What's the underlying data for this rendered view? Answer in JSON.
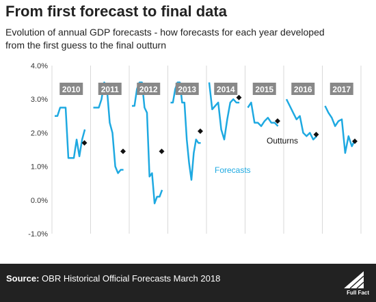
{
  "title": "From first forecast to final data",
  "subtitle": "Evolution of annual GDP forecasts - how forecasts for each year developed from the first guess to the final outturn",
  "footer": {
    "source_label": "Source:",
    "source_text": "OBR Historical Official Forecasts March 2018",
    "logo_text": "Full Fact"
  },
  "colors": {
    "forecast": "#1ea9e1",
    "outturn": "#111111",
    "label_box": "#888888",
    "gridline": "#d8d8d8"
  },
  "chart_data": {
    "type": "line",
    "y_ticks": [
      "4.0%",
      "3.0%",
      "2.0%",
      "1.0%",
      "0.0%",
      "-1.0%"
    ],
    "ylim": [
      -1.0,
      4.0
    ],
    "grid": "vertical-only",
    "annotations": {
      "forecasts": "Forecasts",
      "outturns": "Outturns"
    },
    "series": [
      {
        "year": "2010",
        "outturn": 1.7,
        "forecast": [
          2.5,
          2.5,
          2.75,
          2.75,
          2.75,
          1.25,
          1.25,
          1.25,
          1.8,
          1.3,
          1.8,
          2.1
        ]
      },
      {
        "year": "2011",
        "outturn": 1.45,
        "forecast": [
          2.75,
          2.75,
          2.75,
          3.0,
          3.5,
          3.3,
          2.3,
          2.0,
          1.0,
          0.8,
          0.9,
          0.9
        ]
      },
      {
        "year": "2012",
        "outturn": 1.45,
        "forecast": [
          2.8,
          2.8,
          3.3,
          3.5,
          3.5,
          2.75,
          2.6,
          0.7,
          0.8,
          -0.1,
          0.1,
          0.1,
          0.3
        ]
      },
      {
        "year": "2013",
        "outturn": 2.05,
        "forecast": [
          2.9,
          2.9,
          3.3,
          3.5,
          3.5,
          2.9,
          2.9,
          1.8,
          1.1,
          0.6,
          1.4,
          1.8,
          1.7,
          1.7
        ]
      },
      {
        "year": "2014",
        "outturn": 3.05,
        "forecast": [
          3.5,
          2.7,
          2.8,
          2.9,
          2.1,
          1.8,
          2.4,
          2.9,
          3.0,
          2.9,
          2.9
        ]
      },
      {
        "year": "2015",
        "outturn": 2.35,
        "forecast": [
          2.75,
          2.9,
          2.3,
          2.3,
          2.2,
          2.35,
          2.45,
          2.3,
          2.3,
          2.2
        ]
      },
      {
        "year": "2016",
        "outturn": 1.95,
        "forecast": [
          3.0,
          2.8,
          2.6,
          2.4,
          2.5,
          2.0,
          1.9,
          2.0,
          1.8,
          1.9
        ]
      },
      {
        "year": "2017",
        "outturn": 1.75,
        "forecast": [
          2.8,
          2.6,
          2.45,
          2.2,
          2.35,
          2.4,
          1.4,
          1.9,
          1.6,
          1.8
        ]
      }
    ]
  }
}
